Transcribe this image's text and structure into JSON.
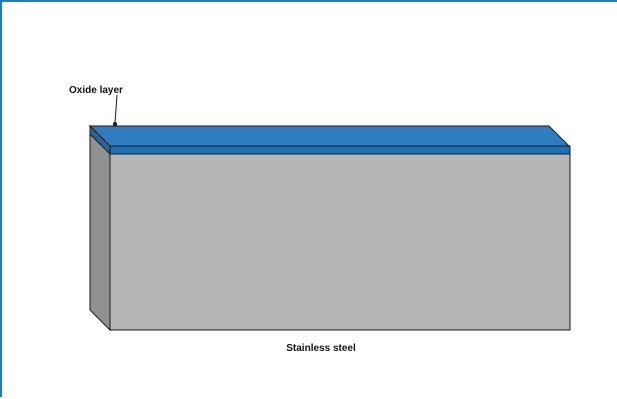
{
  "diagram": {
    "labels": {
      "oxide_layer": "Oxide layer",
      "stainless_steel": "Stainless steel"
    },
    "colors": {
      "frame_border": "#1f7fb4",
      "oxide_layer_top": "#2f7dc0",
      "oxide_layer_front": "#1f6fb5",
      "steel_front": "#b5b6b6",
      "steel_side": "#8f9090",
      "outline": "#1a1a1a"
    }
  }
}
